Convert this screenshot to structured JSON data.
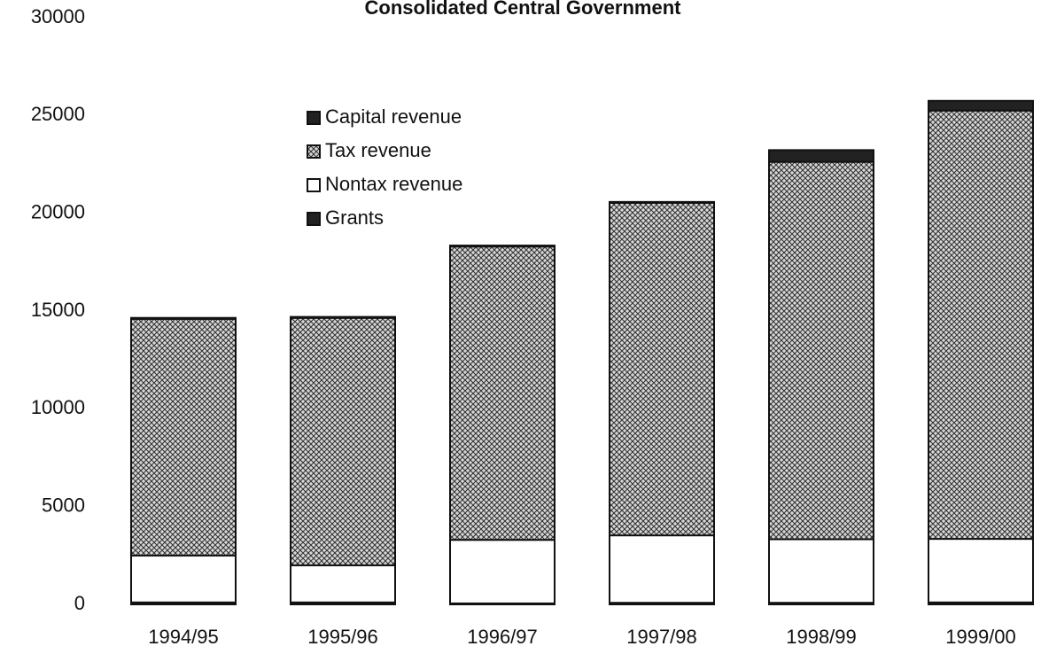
{
  "chart_data": {
    "type": "stacked_bar",
    "title": "Consolidated Central Government",
    "categories": [
      "1994/95",
      "1995/96",
      "1996/97",
      "1997/98",
      "1998/99",
      "1999/00"
    ],
    "series": [
      {
        "name": "Grants",
        "color": "#222222",
        "values": [
          100,
          100,
          50,
          80,
          80,
          100
        ]
      },
      {
        "name": "Nontax revenue",
        "color": "#ffffff",
        "values": [
          2400,
          1900,
          3250,
          3450,
          3250,
          3250
        ]
      },
      {
        "name": "Tax revenue",
        "color": "#8c8c8c",
        "pattern": "crosshatch",
        "values": [
          12100,
          12650,
          15000,
          17000,
          19300,
          21900
        ]
      },
      {
        "name": "Capital revenue",
        "color": "#222222",
        "values": [
          50,
          50,
          50,
          50,
          600,
          500
        ]
      }
    ],
    "legend_order": [
      3,
      2,
      1,
      0
    ],
    "ylim": [
      0,
      30000
    ],
    "yticks": [
      0,
      5000,
      10000,
      15000,
      20000,
      25000,
      30000
    ],
    "grid": false
  }
}
